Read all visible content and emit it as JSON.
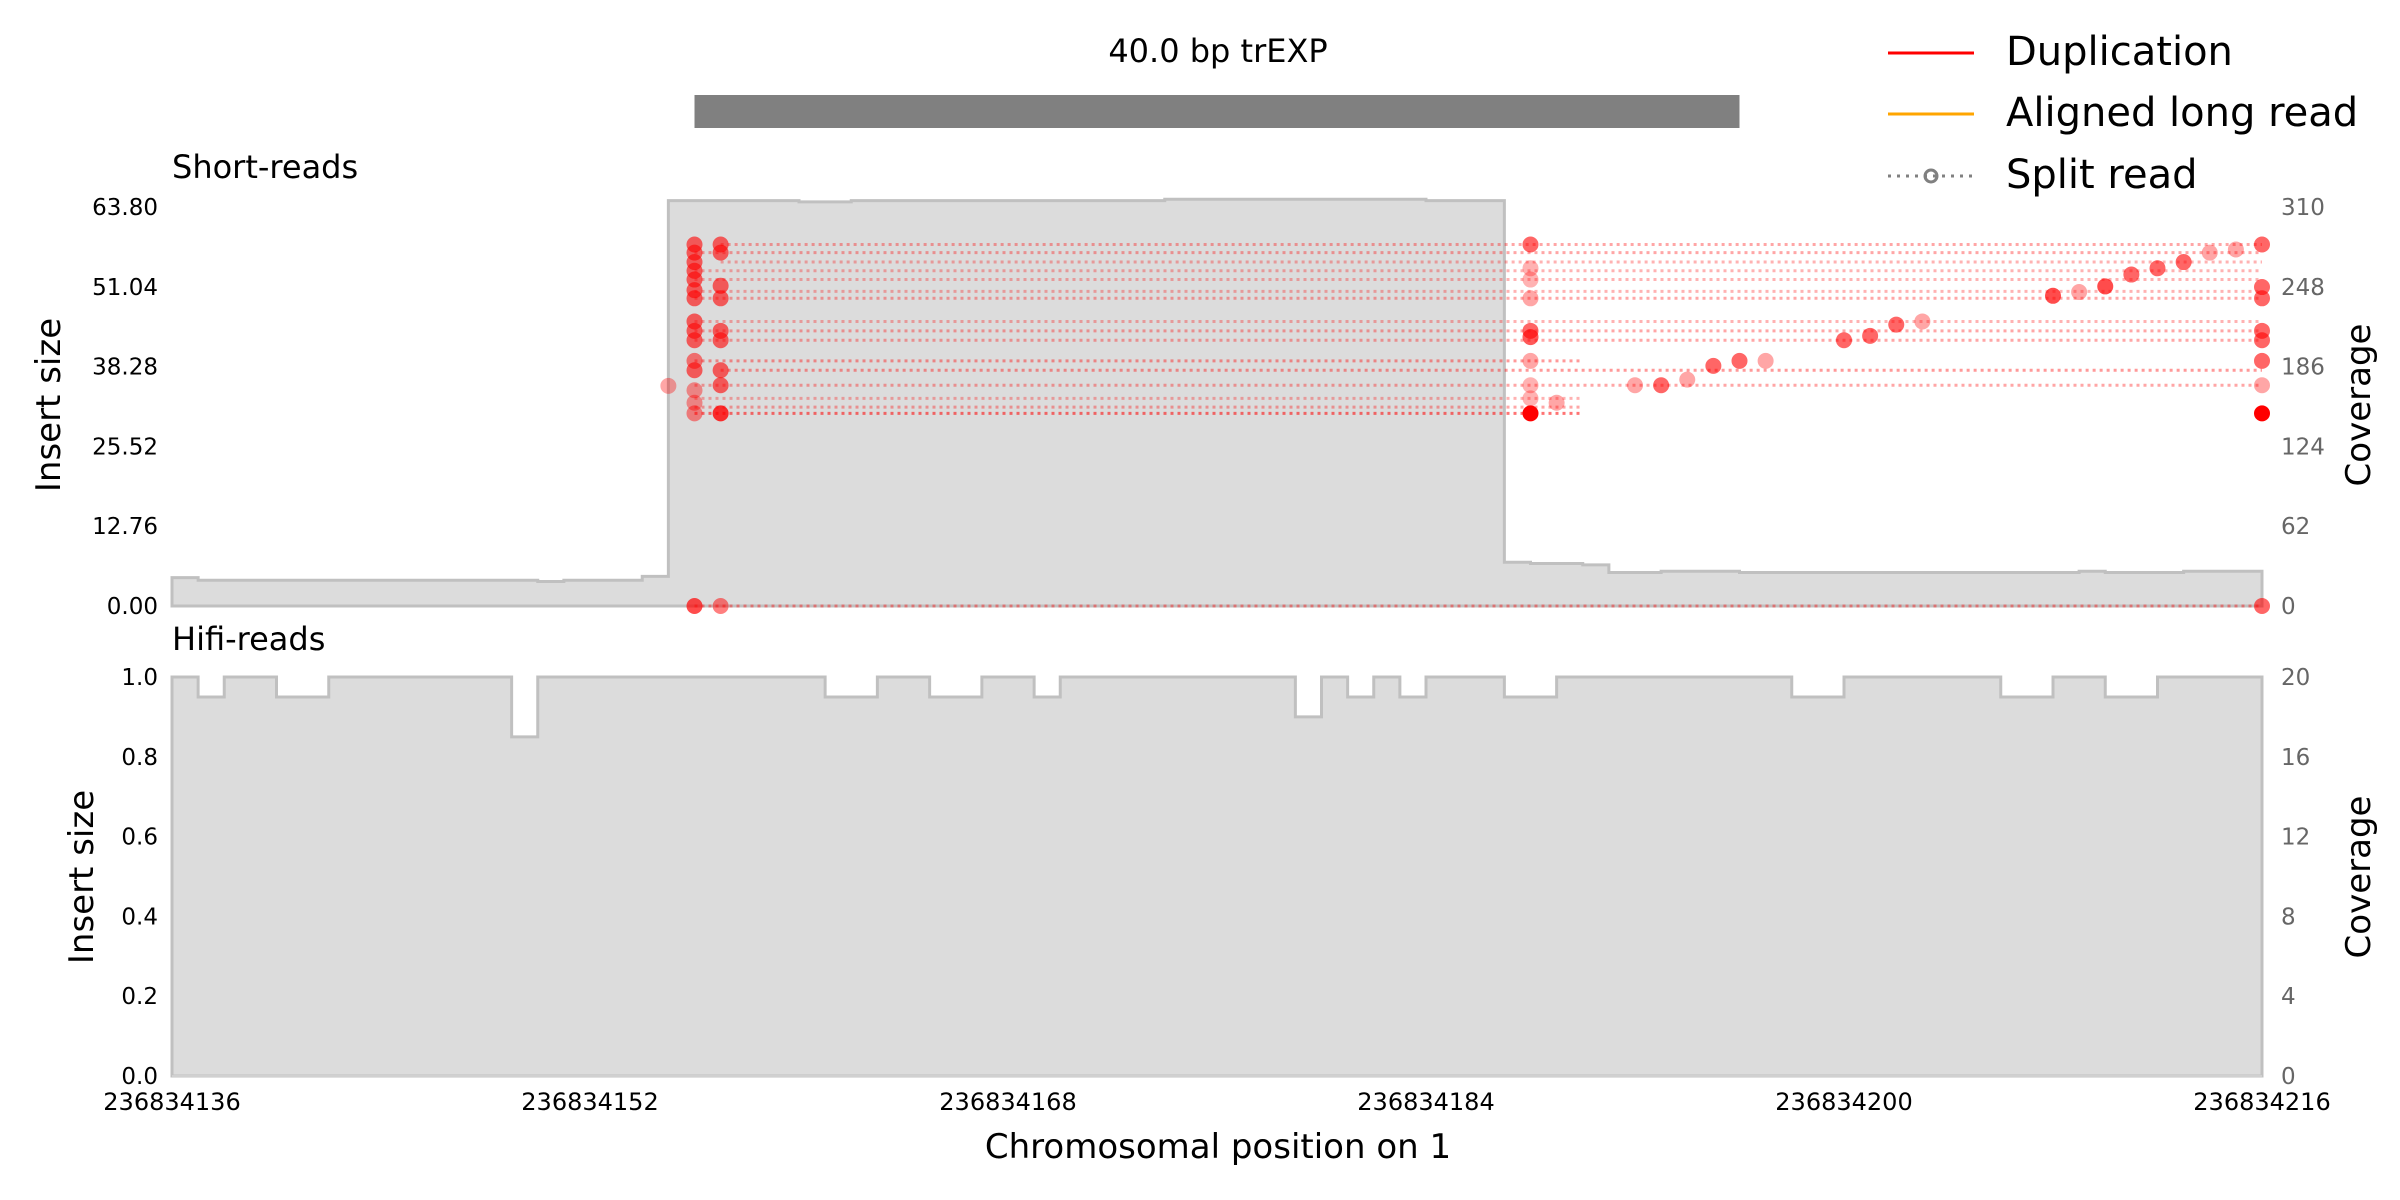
{
  "chart_data": [
    {
      "type": "area",
      "panel": "short-reads",
      "title": "Short-reads",
      "top_label": "40.0 bp trEXP",
      "event_bar_x": [
        236834156,
        236834196
      ],
      "xlim": [
        236834136,
        236834216
      ],
      "ylabel": "Insert size",
      "ylim": [
        0,
        63.8
      ],
      "yticks": [
        "0.00",
        "12.76",
        "25.52",
        "38.28",
        "51.04",
        "63.80"
      ],
      "y2label": "Coverage",
      "y2lim": [
        0,
        310
      ],
      "y2ticks": [
        "0",
        "62",
        "124",
        "186",
        "248",
        "310"
      ],
      "coverage_steps": [
        [
          236834136,
          22
        ],
        [
          236834137,
          20
        ],
        [
          236834150,
          19
        ],
        [
          236834151,
          20
        ],
        [
          236834154,
          23
        ],
        [
          236834155,
          315
        ],
        [
          236834160,
          314
        ],
        [
          236834162,
          315
        ],
        [
          236834174,
          316
        ],
        [
          236834184,
          315
        ],
        [
          236834187,
          34
        ],
        [
          236834188,
          33
        ],
        [
          236834190,
          32
        ],
        [
          236834191,
          26
        ],
        [
          236834193,
          27
        ],
        [
          236834196,
          26
        ],
        [
          236834209,
          27
        ],
        [
          236834210,
          26
        ],
        [
          236834213,
          27
        ],
        [
          236834216,
          27
        ]
      ],
      "split_reads": [
        {
          "x1": 236834156,
          "x2": 236834190,
          "y": 30.8,
          "a": 0.55
        },
        {
          "x1": 236834156,
          "x2": 236834190,
          "y": 31.8,
          "a": 0.35
        },
        {
          "x1": 236834156,
          "x2": 236834190,
          "y": 33.2,
          "a": 0.3
        },
        {
          "x1": 236834156,
          "x2": 236834216,
          "y": 35.3,
          "a": 0.35
        },
        {
          "x1": 236834157,
          "x2": 236834216,
          "y": 37.7,
          "a": 0.4
        },
        {
          "x1": 236834156,
          "x2": 236834190,
          "y": 39.2,
          "a": 0.4
        },
        {
          "x1": 236834156,
          "x2": 236834216,
          "y": 42.5,
          "a": 0.35
        },
        {
          "x1": 236834156,
          "x2": 236834216,
          "y": 44.0,
          "a": 0.35
        },
        {
          "x1": 236834156,
          "x2": 236834216,
          "y": 45.5,
          "a": 0.3
        },
        {
          "x1": 236834156,
          "x2": 236834216,
          "y": 49.2,
          "a": 0.35
        },
        {
          "x1": 236834156,
          "x2": 236834216,
          "y": 50.3,
          "a": 0.3
        },
        {
          "x1": 236834156,
          "x2": 236834216,
          "y": 52.2,
          "a": 0.3
        },
        {
          "x1": 236834156,
          "x2": 236834216,
          "y": 53.6,
          "a": 0.3
        },
        {
          "x1": 236834157,
          "x2": 236834216,
          "y": 55.0,
          "a": 0.3
        },
        {
          "x1": 236834156,
          "x2": 236834216,
          "y": 56.5,
          "a": 0.35
        },
        {
          "x1": 236834157,
          "x2": 236834216,
          "y": 57.8,
          "a": 0.35
        },
        {
          "x1": 236834156,
          "x2": 236834216,
          "y": 0.0,
          "a": 0.4
        }
      ],
      "split_points": [
        {
          "x": 236834155,
          "y": 35.2,
          "a": 0.35
        },
        {
          "x": 236834156,
          "y": 30.8,
          "a": 0.45
        },
        {
          "x": 236834157,
          "y": 30.8,
          "a": 0.8
        },
        {
          "x": 236834156,
          "y": 32.5,
          "a": 0.4
        },
        {
          "x": 236834156,
          "y": 34.5,
          "a": 0.4
        },
        {
          "x": 236834157,
          "y": 35.3,
          "a": 0.6
        },
        {
          "x": 236834156,
          "y": 37.7,
          "a": 0.6
        },
        {
          "x": 236834157,
          "y": 37.7,
          "a": 0.6
        },
        {
          "x": 236834156,
          "y": 39.2,
          "a": 0.5
        },
        {
          "x": 236834156,
          "y": 42.5,
          "a": 0.6
        },
        {
          "x": 236834157,
          "y": 42.5,
          "a": 0.6
        },
        {
          "x": 236834156,
          "y": 44.0,
          "a": 0.6
        },
        {
          "x": 236834157,
          "y": 44.0,
          "a": 0.6
        },
        {
          "x": 236834156,
          "y": 45.5,
          "a": 0.6
        },
        {
          "x": 236834156,
          "y": 49.2,
          "a": 0.6
        },
        {
          "x": 236834157,
          "y": 49.2,
          "a": 0.6
        },
        {
          "x": 236834156,
          "y": 50.5,
          "a": 0.6
        },
        {
          "x": 236834157,
          "y": 51.2,
          "a": 0.6
        },
        {
          "x": 236834156,
          "y": 52.2,
          "a": 0.6
        },
        {
          "x": 236834156,
          "y": 53.6,
          "a": 0.6
        },
        {
          "x": 236834156,
          "y": 55.0,
          "a": 0.6
        },
        {
          "x": 236834156,
          "y": 56.5,
          "a": 0.6
        },
        {
          "x": 236834157,
          "y": 56.5,
          "a": 0.6
        },
        {
          "x": 236834156,
          "y": 57.8,
          "a": 0.6
        },
        {
          "x": 236834157,
          "y": 57.8,
          "a": 0.6
        },
        {
          "x": 236834156,
          "y": 0.0,
          "a": 0.7
        },
        {
          "x": 236834157,
          "y": 0.0,
          "a": 0.5
        },
        {
          "x": 236834188,
          "y": 30.8,
          "a": 1.0
        },
        {
          "x": 236834189,
          "y": 32.5,
          "a": 0.35
        },
        {
          "x": 236834188,
          "y": 33.2,
          "a": 0.3
        },
        {
          "x": 236834188,
          "y": 35.3,
          "a": 0.3
        },
        {
          "x": 236834188,
          "y": 39.2,
          "a": 0.35
        },
        {
          "x": 236834188,
          "y": 43.0,
          "a": 0.65
        },
        {
          "x": 236834188,
          "y": 44.0,
          "a": 0.6
        },
        {
          "x": 236834188,
          "y": 49.2,
          "a": 0.35
        },
        {
          "x": 236834188,
          "y": 52.2,
          "a": 0.3
        },
        {
          "x": 236834188,
          "y": 54.0,
          "a": 0.3
        },
        {
          "x": 236834188,
          "y": 57.8,
          "a": 0.6
        },
        {
          "x": 236834192,
          "y": 35.3,
          "a": 0.35
        },
        {
          "x": 236834193,
          "y": 35.3,
          "a": 0.6
        },
        {
          "x": 236834194,
          "y": 36.2,
          "a": 0.35
        },
        {
          "x": 236834195,
          "y": 38.4,
          "a": 0.6
        },
        {
          "x": 236834196,
          "y": 39.2,
          "a": 0.6
        },
        {
          "x": 236834197,
          "y": 39.2,
          "a": 0.35
        },
        {
          "x": 236834200,
          "y": 42.5,
          "a": 0.6
        },
        {
          "x": 236834201,
          "y": 43.2,
          "a": 0.6
        },
        {
          "x": 236834202,
          "y": 45.0,
          "a": 0.6
        },
        {
          "x": 236834203,
          "y": 45.5,
          "a": 0.35
        },
        {
          "x": 236834208,
          "y": 49.6,
          "a": 0.7
        },
        {
          "x": 236834209,
          "y": 50.2,
          "a": 0.35
        },
        {
          "x": 236834210,
          "y": 51.1,
          "a": 0.7
        },
        {
          "x": 236834211,
          "y": 53.0,
          "a": 0.6
        },
        {
          "x": 236834212,
          "y": 54.0,
          "a": 0.6
        },
        {
          "x": 236834213,
          "y": 55.0,
          "a": 0.6
        },
        {
          "x": 236834214,
          "y": 56.5,
          "a": 0.35
        },
        {
          "x": 236834215,
          "y": 57.0,
          "a": 0.35
        },
        {
          "x": 236834216,
          "y": 57.8,
          "a": 0.6
        },
        {
          "x": 236834216,
          "y": 51.0,
          "a": 0.6
        },
        {
          "x": 236834216,
          "y": 49.2,
          "a": 0.6
        },
        {
          "x": 236834216,
          "y": 44.0,
          "a": 0.6
        },
        {
          "x": 236834216,
          "y": 42.5,
          "a": 0.6
        },
        {
          "x": 236834216,
          "y": 39.2,
          "a": 0.6
        },
        {
          "x": 236834216,
          "y": 35.3,
          "a": 0.35
        },
        {
          "x": 236834216,
          "y": 30.8,
          "a": 1.0
        },
        {
          "x": 236834216,
          "y": 0.0,
          "a": 0.6
        }
      ]
    },
    {
      "type": "area",
      "panel": "hifi-reads",
      "title": "Hifi-reads",
      "xlabel": "Chromosomal position on 1",
      "xlim": [
        236834136,
        236834216
      ],
      "xticks": [
        "236834136",
        "236834152",
        "236834168",
        "236834184",
        "236834200",
        "236834216"
      ],
      "ylabel": "Insert size",
      "ylim": [
        0,
        1.0
      ],
      "yticks": [
        "0.0",
        "0.2",
        "0.4",
        "0.6",
        "0.8",
        "1.0"
      ],
      "y2label": "Coverage",
      "y2lim": [
        0,
        20
      ],
      "y2ticks": [
        "0",
        "4",
        "8",
        "12",
        "16",
        "20"
      ],
      "coverage_steps": [
        [
          236834136,
          20
        ],
        [
          236834137,
          19
        ],
        [
          236834138,
          20
        ],
        [
          236834140,
          19
        ],
        [
          236834142,
          20
        ],
        [
          236834149,
          17
        ],
        [
          236834150,
          20
        ],
        [
          236834161,
          19
        ],
        [
          236834163,
          20
        ],
        [
          236834165,
          19
        ],
        [
          236834167,
          20
        ],
        [
          236834169,
          19
        ],
        [
          236834170,
          20
        ],
        [
          236834179,
          18
        ],
        [
          236834180,
          20
        ],
        [
          236834181,
          19
        ],
        [
          236834182,
          20
        ],
        [
          236834183,
          19
        ],
        [
          236834184,
          20
        ],
        [
          236834187,
          19
        ],
        [
          236834189,
          20
        ],
        [
          236834198,
          19
        ],
        [
          236834200,
          20
        ],
        [
          236834206,
          19
        ],
        [
          236834208,
          20
        ],
        [
          236834210,
          19
        ],
        [
          236834212,
          20
        ],
        [
          236834216,
          20
        ]
      ]
    }
  ],
  "legend": {
    "items": [
      {
        "label": "Duplication",
        "color": "#ff0000",
        "icon": "solid-line"
      },
      {
        "label": "Aligned long read",
        "color": "#ffa500",
        "icon": "solid-line"
      },
      {
        "label": "Split read",
        "color": "#808080",
        "icon": "dotted-line-circle"
      }
    ]
  },
  "colors": {
    "coverage_fill": "#dcdcdc",
    "coverage_edge": "#c0c0c0",
    "event_bar": "#808080",
    "split": "#ff0000"
  }
}
